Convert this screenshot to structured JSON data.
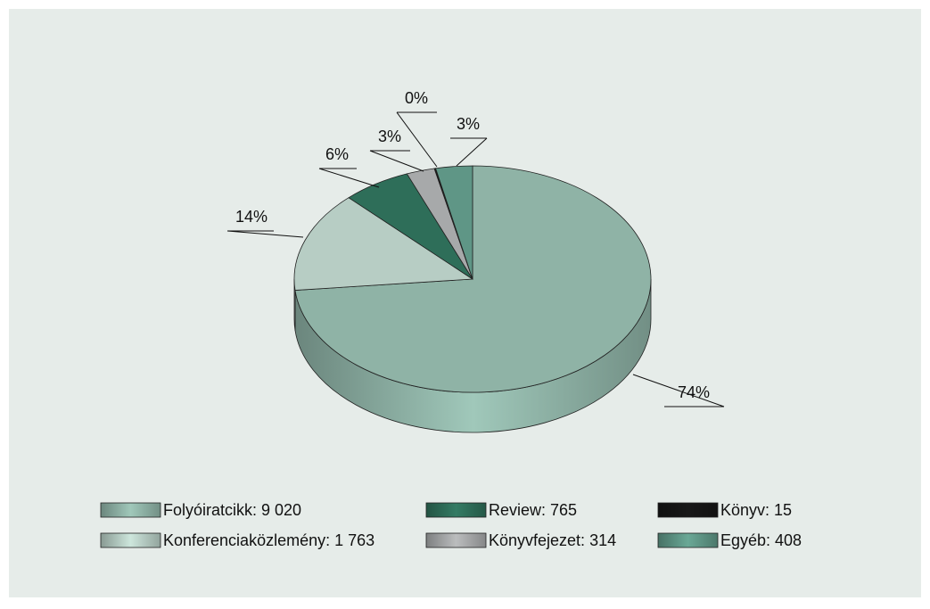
{
  "chart_data": {
    "type": "pie3d",
    "categories": [
      "Folyóiratcikk: 9 020",
      "Konferenciaközlemény: 1 763",
      "Review: 765",
      "Könyvfejezet: 314",
      "Könyv: 15",
      "Egyéb: 408"
    ],
    "values": [
      9020,
      1763,
      765,
      314,
      15,
      408
    ],
    "percentages": [
      74,
      14,
      6,
      3,
      0,
      3
    ],
    "percentage_labels": [
      "74%",
      "14%",
      "6%",
      "3%",
      "0%",
      "3%"
    ],
    "colors": [
      "#8fb3a6",
      "#b7cdc4",
      "#2e6e59",
      "#a7a9aa",
      "#151515",
      "#5f9686"
    ]
  }
}
